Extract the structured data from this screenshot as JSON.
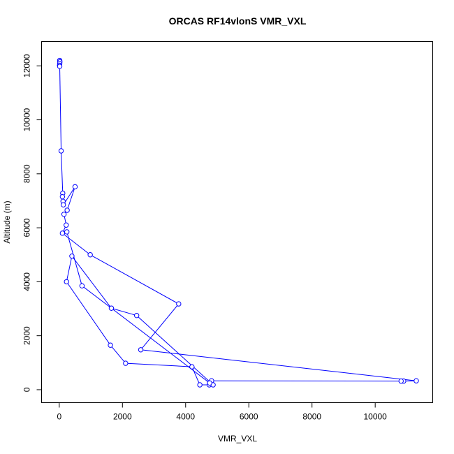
{
  "chart_data": {
    "type": "line",
    "title": "ORCAS RF14vlonS VMR_VXL",
    "xlabel": "VMR_VXL",
    "ylabel": "Altitude (m)",
    "xlim": [
      -560,
      11820
    ],
    "ylim": [
      -480,
      12900
    ],
    "x_ticks": [
      0,
      2000,
      4000,
      6000,
      8000,
      10000
    ],
    "x_tick_labels": [
      "0",
      "2000",
      "4000",
      "6000",
      "8000",
      "10000"
    ],
    "y_ticks": [
      0,
      2000,
      4000,
      6000,
      8000,
      10000,
      12000
    ],
    "y_tick_labels": [
      "0",
      "2000",
      "4000",
      "6000",
      "8000",
      "10000",
      "12000"
    ],
    "grid": false,
    "legend": "none",
    "markers": "open circles",
    "series": [
      {
        "color": "#0000ff",
        "x": [
          15,
          20,
          15,
          10,
          15,
          60,
          110,
          100,
          120,
          130,
          500,
          250,
          150,
          220,
          100,
          980,
          3780,
          2580,
          11300,
          10900,
          10820,
          4820,
          4750,
          4450,
          4200,
          2100,
          1620,
          230,
          400,
          1650,
          2450,
          4870,
          4760,
          720,
          240
        ],
        "y": [
          12200,
          12150,
          12080,
          12020,
          11980,
          8850,
          7280,
          7150,
          6980,
          6850,
          7520,
          6650,
          6500,
          6100,
          5800,
          5000,
          3180,
          1480,
          330,
          320,
          320,
          330,
          180,
          180,
          850,
          980,
          1650,
          4000,
          4950,
          3020,
          2750,
          180,
          250,
          3850,
          5850
        ]
      }
    ]
  }
}
